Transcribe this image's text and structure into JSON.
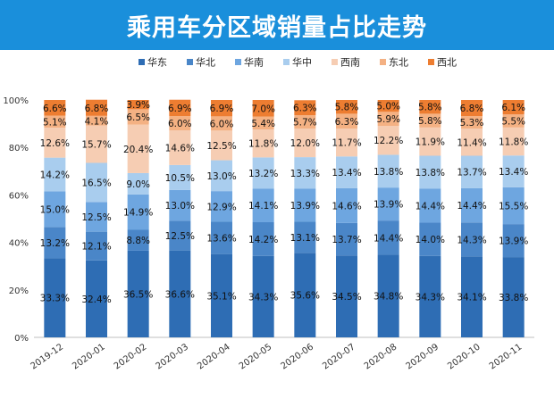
{
  "title": "乘用车分区域销量占比走势",
  "chart_data": {
    "type": "bar",
    "stacked": true,
    "title": "乘用车分区域销量占比走势",
    "categories": [
      "2019-12",
      "2020-01",
      "2020-02",
      "2020-03",
      "2020-04",
      "2020-05",
      "2020-06",
      "2020-07",
      "2020-08",
      "2020-09",
      "2020-10",
      "2020-11"
    ],
    "ylim": [
      0,
      100
    ],
    "yticks": [
      "0%",
      "20%",
      "40%",
      "60%",
      "80%",
      "100%"
    ],
    "legend_position": "top",
    "series": [
      {
        "name": "华东",
        "color": "#2e6db4",
        "values": [
          33.3,
          32.4,
          36.5,
          36.6,
          35.1,
          34.3,
          35.6,
          34.5,
          34.8,
          34.3,
          34.1,
          33.8
        ]
      },
      {
        "name": "华北",
        "color": "#4a86c8",
        "values": [
          13.2,
          12.1,
          8.8,
          12.5,
          13.6,
          14.2,
          13.1,
          13.7,
          14.4,
          14.0,
          14.3,
          13.9
        ]
      },
      {
        "name": "华南",
        "color": "#6ea6e0",
        "values": [
          15.0,
          12.5,
          14.9,
          13.0,
          12.9,
          14.1,
          13.9,
          14.6,
          13.9,
          14.4,
          14.4,
          15.5
        ]
      },
      {
        "name": "华中",
        "color": "#a9cdee",
        "values": [
          14.2,
          16.5,
          9.0,
          10.5,
          13.0,
          13.2,
          13.3,
          13.4,
          13.8,
          13.8,
          13.7,
          13.4
        ]
      },
      {
        "name": "西南",
        "color": "#f6cdb3",
        "values": [
          12.6,
          15.7,
          20.4,
          14.6,
          12.5,
          11.8,
          12.0,
          11.7,
          12.2,
          11.9,
          11.4,
          11.8
        ]
      },
      {
        "name": "东北",
        "color": "#f4b183",
        "values": [
          5.1,
          4.1,
          6.5,
          6.0,
          6.0,
          5.4,
          5.7,
          6.3,
          5.9,
          5.8,
          5.3,
          5.5
        ]
      },
      {
        "name": "西北",
        "color": "#ed7d31",
        "values": [
          6.6,
          6.8,
          3.9,
          6.9,
          6.9,
          7.0,
          6.3,
          5.8,
          5.0,
          5.8,
          6.8,
          6.1
        ]
      }
    ]
  }
}
